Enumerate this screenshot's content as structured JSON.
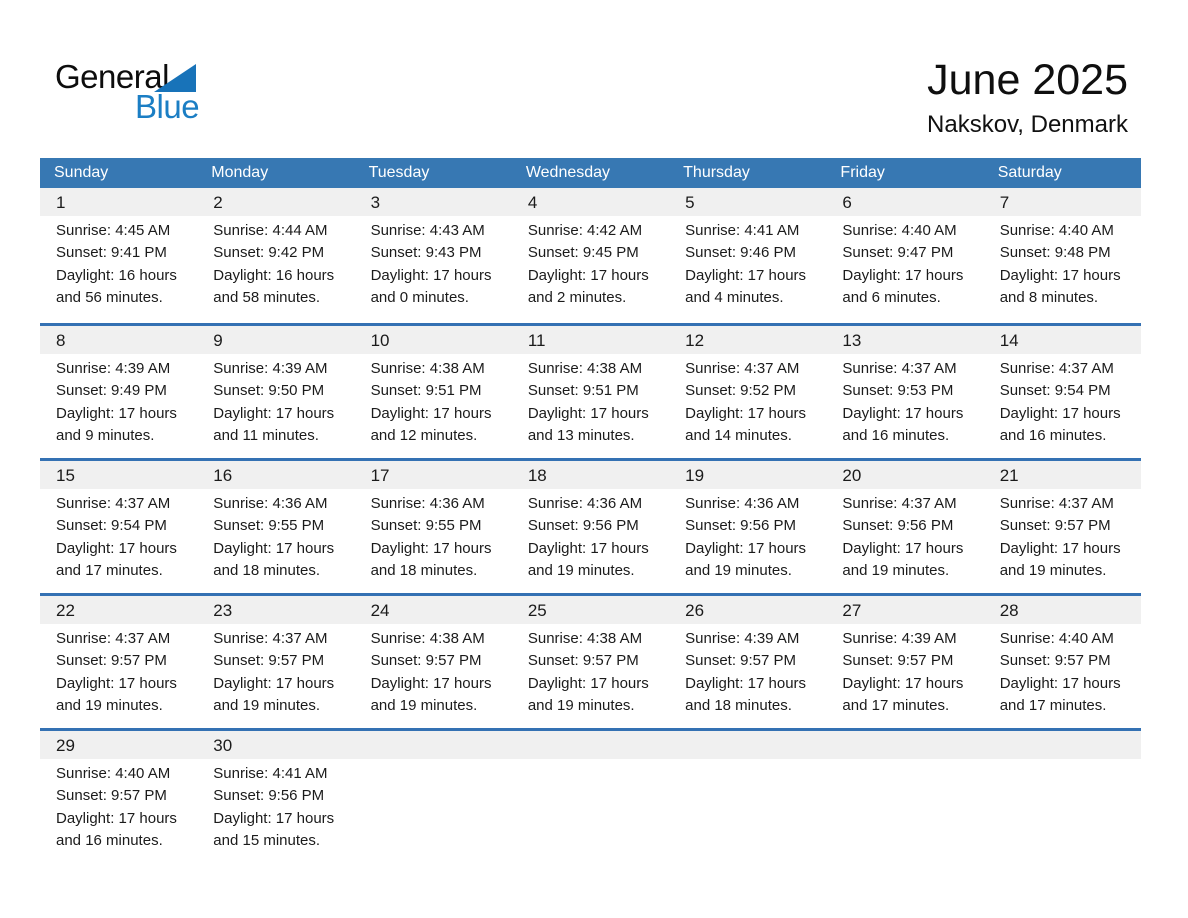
{
  "logo": {
    "word_general": "General",
    "word_blue": "Blue"
  },
  "header": {
    "title": "June 2025",
    "subtitle": "Nakskov, Denmark"
  },
  "weekdays": [
    "Sunday",
    "Monday",
    "Tuesday",
    "Wednesday",
    "Thursday",
    "Friday",
    "Saturday"
  ],
  "colors": {
    "header_bg": "#3778b3",
    "row_border": "#3471b3",
    "day_strip_bg": "#f0f0f0",
    "logo_blue": "#1b7ec4",
    "logo_triangle_blue": "#1873b9"
  },
  "weeks": [
    [
      {
        "day": "1",
        "lines": [
          "Sunrise: 4:45 AM",
          "Sunset: 9:41 PM",
          "Daylight: 16 hours",
          "and 56 minutes."
        ]
      },
      {
        "day": "2",
        "lines": [
          "Sunrise: 4:44 AM",
          "Sunset: 9:42 PM",
          "Daylight: 16 hours",
          "and 58 minutes."
        ]
      },
      {
        "day": "3",
        "lines": [
          "Sunrise: 4:43 AM",
          "Sunset: 9:43 PM",
          "Daylight: 17 hours",
          "and 0 minutes."
        ]
      },
      {
        "day": "4",
        "lines": [
          "Sunrise: 4:42 AM",
          "Sunset: 9:45 PM",
          "Daylight: 17 hours",
          "and 2 minutes."
        ]
      },
      {
        "day": "5",
        "lines": [
          "Sunrise: 4:41 AM",
          "Sunset: 9:46 PM",
          "Daylight: 17 hours",
          "and 4 minutes."
        ]
      },
      {
        "day": "6",
        "lines": [
          "Sunrise: 4:40 AM",
          "Sunset: 9:47 PM",
          "Daylight: 17 hours",
          "and 6 minutes."
        ]
      },
      {
        "day": "7",
        "lines": [
          "Sunrise: 4:40 AM",
          "Sunset: 9:48 PM",
          "Daylight: 17 hours",
          "and 8 minutes."
        ]
      }
    ],
    [
      {
        "day": "8",
        "lines": [
          "Sunrise: 4:39 AM",
          "Sunset: 9:49 PM",
          "Daylight: 17 hours",
          "and 9 minutes."
        ]
      },
      {
        "day": "9",
        "lines": [
          "Sunrise: 4:39 AM",
          "Sunset: 9:50 PM",
          "Daylight: 17 hours",
          "and 11 minutes."
        ]
      },
      {
        "day": "10",
        "lines": [
          "Sunrise: 4:38 AM",
          "Sunset: 9:51 PM",
          "Daylight: 17 hours",
          "and 12 minutes."
        ]
      },
      {
        "day": "11",
        "lines": [
          "Sunrise: 4:38 AM",
          "Sunset: 9:51 PM",
          "Daylight: 17 hours",
          "and 13 minutes."
        ]
      },
      {
        "day": "12",
        "lines": [
          "Sunrise: 4:37 AM",
          "Sunset: 9:52 PM",
          "Daylight: 17 hours",
          "and 14 minutes."
        ]
      },
      {
        "day": "13",
        "lines": [
          "Sunrise: 4:37 AM",
          "Sunset: 9:53 PM",
          "Daylight: 17 hours",
          "and 16 minutes."
        ]
      },
      {
        "day": "14",
        "lines": [
          "Sunrise: 4:37 AM",
          "Sunset: 9:54 PM",
          "Daylight: 17 hours",
          "and 16 minutes."
        ]
      }
    ],
    [
      {
        "day": "15",
        "lines": [
          "Sunrise: 4:37 AM",
          "Sunset: 9:54 PM",
          "Daylight: 17 hours",
          "and 17 minutes."
        ]
      },
      {
        "day": "16",
        "lines": [
          "Sunrise: 4:36 AM",
          "Sunset: 9:55 PM",
          "Daylight: 17 hours",
          "and 18 minutes."
        ]
      },
      {
        "day": "17",
        "lines": [
          "Sunrise: 4:36 AM",
          "Sunset: 9:55 PM",
          "Daylight: 17 hours",
          "and 18 minutes."
        ]
      },
      {
        "day": "18",
        "lines": [
          "Sunrise: 4:36 AM",
          "Sunset: 9:56 PM",
          "Daylight: 17 hours",
          "and 19 minutes."
        ]
      },
      {
        "day": "19",
        "lines": [
          "Sunrise: 4:36 AM",
          "Sunset: 9:56 PM",
          "Daylight: 17 hours",
          "and 19 minutes."
        ]
      },
      {
        "day": "20",
        "lines": [
          "Sunrise: 4:37 AM",
          "Sunset: 9:56 PM",
          "Daylight: 17 hours",
          "and 19 minutes."
        ]
      },
      {
        "day": "21",
        "lines": [
          "Sunrise: 4:37 AM",
          "Sunset: 9:57 PM",
          "Daylight: 17 hours",
          "and 19 minutes."
        ]
      }
    ],
    [
      {
        "day": "22",
        "lines": [
          "Sunrise: 4:37 AM",
          "Sunset: 9:57 PM",
          "Daylight: 17 hours",
          "and 19 minutes."
        ]
      },
      {
        "day": "23",
        "lines": [
          "Sunrise: 4:37 AM",
          "Sunset: 9:57 PM",
          "Daylight: 17 hours",
          "and 19 minutes."
        ]
      },
      {
        "day": "24",
        "lines": [
          "Sunrise: 4:38 AM",
          "Sunset: 9:57 PM",
          "Daylight: 17 hours",
          "and 19 minutes."
        ]
      },
      {
        "day": "25",
        "lines": [
          "Sunrise: 4:38 AM",
          "Sunset: 9:57 PM",
          "Daylight: 17 hours",
          "and 19 minutes."
        ]
      },
      {
        "day": "26",
        "lines": [
          "Sunrise: 4:39 AM",
          "Sunset: 9:57 PM",
          "Daylight: 17 hours",
          "and 18 minutes."
        ]
      },
      {
        "day": "27",
        "lines": [
          "Sunrise: 4:39 AM",
          "Sunset: 9:57 PM",
          "Daylight: 17 hours",
          "and 17 minutes."
        ]
      },
      {
        "day": "28",
        "lines": [
          "Sunrise: 4:40 AM",
          "Sunset: 9:57 PM",
          "Daylight: 17 hours",
          "and 17 minutes."
        ]
      }
    ],
    [
      {
        "day": "29",
        "lines": [
          "Sunrise: 4:40 AM",
          "Sunset: 9:57 PM",
          "Daylight: 17 hours",
          "and 16 minutes."
        ]
      },
      {
        "day": "30",
        "lines": [
          "Sunrise: 4:41 AM",
          "Sunset: 9:56 PM",
          "Daylight: 17 hours",
          "and 15 minutes."
        ]
      },
      null,
      null,
      null,
      null,
      null
    ]
  ]
}
